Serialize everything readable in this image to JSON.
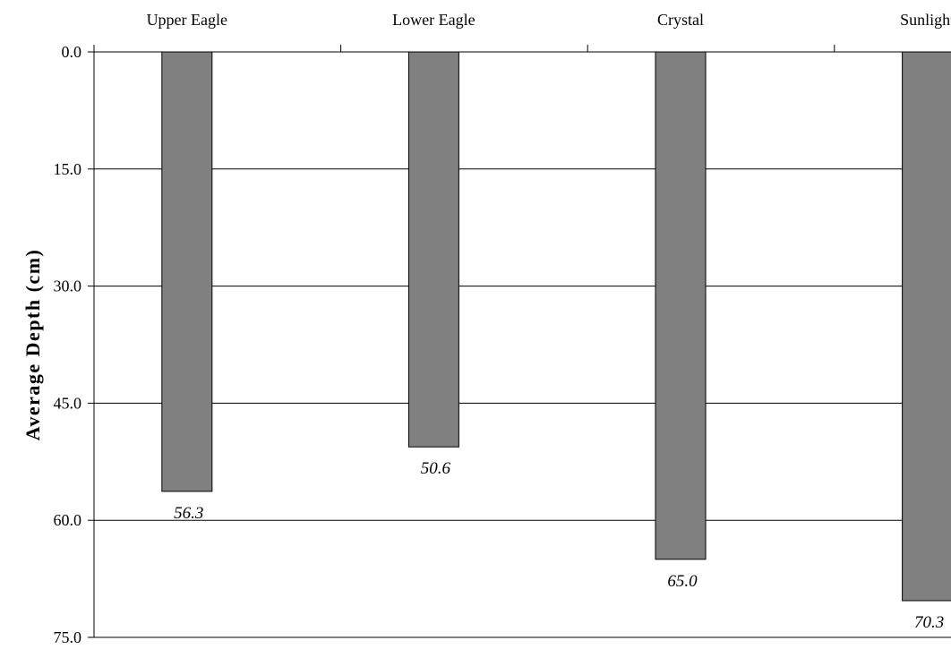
{
  "chart_data": {
    "type": "bar",
    "orientation": "vertical-inverted",
    "title": "",
    "xlabel": "",
    "ylabel": "Average Depth (cm)",
    "categories": [
      "Upper Eagle",
      "Lower Eagle",
      "Crystal",
      "Sunlight"
    ],
    "values": [
      56.3,
      50.6,
      65.0,
      70.3
    ],
    "value_labels": [
      "56.3",
      "50.6",
      "65.0",
      "70.3"
    ],
    "ylim": [
      0,
      75
    ],
    "y_inverted": true,
    "yticks": [
      0,
      15,
      30,
      45,
      60,
      75
    ],
    "ytick_labels": [
      "0.0",
      "15.0",
      "30.0",
      "45.0",
      "60.0",
      "75.0"
    ],
    "category_axis_position": "top",
    "grid": "horizontal",
    "legend": "none",
    "bar_color": "#808080",
    "bar_edge_color": "#000000"
  }
}
